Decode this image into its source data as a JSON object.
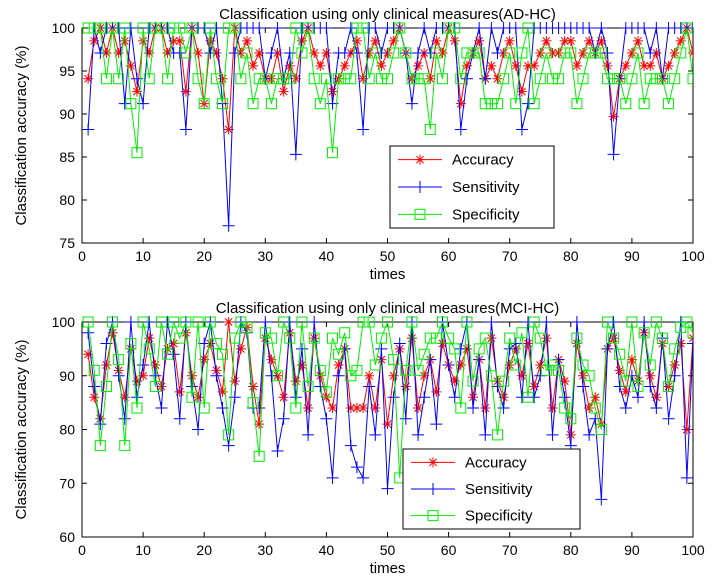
{
  "chart_data": [
    {
      "type": "line",
      "title": "Classification using only clinical measures(AD-HC)",
      "xlabel": "times",
      "ylabel": "Classification accuracy (%)",
      "xlim": [
        0,
        100
      ],
      "ylim": [
        75,
        100
      ],
      "xticks": [
        0,
        10,
        20,
        30,
        40,
        50,
        60,
        70,
        80,
        90,
        100
      ],
      "yticks": [
        75,
        80,
        85,
        90,
        95,
        100
      ],
      "grid": false,
      "legend_position": "lower-right",
      "x": [
        1,
        2,
        3,
        4,
        5,
        6,
        7,
        8,
        9,
        10,
        11,
        12,
        13,
        14,
        15,
        16,
        17,
        18,
        19,
        20,
        21,
        22,
        23,
        24,
        25,
        26,
        27,
        28,
        29,
        30,
        31,
        32,
        33,
        34,
        35,
        36,
        37,
        38,
        39,
        40,
        41,
        42,
        43,
        44,
        45,
        46,
        47,
        48,
        49,
        50,
        51,
        52,
        53,
        54,
        55,
        56,
        57,
        58,
        59,
        60,
        61,
        62,
        63,
        64,
        65,
        66,
        67,
        68,
        69,
        70,
        71,
        72,
        73,
        74,
        75,
        76,
        77,
        78,
        79,
        80,
        81,
        82,
        83,
        84,
        85,
        86,
        87,
        88,
        89,
        90,
        91,
        92,
        93,
        94,
        95,
        96,
        97,
        98,
        99,
        100
      ],
      "series": [
        {
          "name": "Accuracy",
          "color": "#ff0000",
          "marker": "asterisk",
          "values": [
            94.1,
            98.5,
            100,
            97.1,
            100,
            97.1,
            98.5,
            95.6,
            92.6,
            98.5,
            97.1,
            100,
            100,
            97.1,
            98.5,
            98.5,
            92.6,
            100,
            97.1,
            91.2,
            98.5,
            97.1,
            94.1,
            88.2,
            100,
            97.1,
            98.5,
            95.6,
            97.1,
            94.1,
            94.1,
            97.1,
            92.6,
            95.6,
            94.1,
            98.5,
            100,
            97.1,
            95.6,
            97.1,
            92.6,
            94.1,
            95.6,
            97.1,
            98.5,
            94.1,
            97.1,
            98.5,
            95.6,
            97.1,
            98.5,
            100,
            97.1,
            94.1,
            95.6,
            97.1,
            94.1,
            98.5,
            97.1,
            100,
            98.5,
            91.2,
            95.6,
            97.1,
            98.5,
            94.1,
            95.6,
            94.1,
            97.1,
            98.5,
            95.6,
            92.6,
            95.6,
            95.6,
            97.1,
            98.5,
            97.1,
            97.1,
            98.5,
            98.5,
            95.6,
            97.1,
            98.5,
            97.1,
            98.5,
            95.6,
            89.7,
            94.1,
            95.6,
            97.1,
            98.5,
            95.6,
            95.6,
            97.1,
            94.1,
            95.6,
            97.1,
            98.5,
            100,
            97.1
          ]
        },
        {
          "name": "Sensitivity",
          "color": "#0000ff",
          "marker": "plus",
          "values": [
            88.2,
            100,
            97.1,
            100,
            100,
            100,
            91.2,
            100,
            94.1,
            91.2,
            100,
            100,
            100,
            100,
            97.1,
            97.1,
            88.2,
            100,
            100,
            100,
            97.1,
            100,
            91.2,
            77,
            97.1,
            100,
            100,
            100,
            100,
            94.1,
            97.1,
            100,
            94.1,
            97.1,
            85.3,
            100,
            100,
            100,
            100,
            100,
            91.2,
            97.1,
            97.1,
            100,
            97.1,
            88.2,
            100,
            100,
            97.1,
            100,
            100,
            100,
            97.1,
            91.2,
            97.1,
            100,
            97.1,
            100,
            100,
            100,
            100,
            88.2,
            94.1,
            97.1,
            100,
            94.1,
            100,
            97.1,
            100,
            100,
            100,
            88.2,
            91.2,
            100,
            100,
            100,
            100,
            100,
            100,
            100,
            100,
            100,
            100,
            97.1,
            100,
            97.1,
            85.3,
            94.1,
            100,
            100,
            100,
            100,
            97.1,
            100,
            94.1,
            100,
            100,
            100,
            100,
            100
          ]
        },
        {
          "name": "Specificity",
          "color": "#00ee00",
          "marker": "square",
          "values": [
            100,
            100,
            100,
            94.1,
            100,
            94.1,
            100,
            91.2,
            85.5,
            100,
            94.1,
            100,
            100,
            94.1,
            100,
            100,
            97.1,
            100,
            94.1,
            91.2,
            100,
            94.1,
            91.2,
            100,
            100,
            94.1,
            97.1,
            91.2,
            94.1,
            94.1,
            91.2,
            94.1,
            94.1,
            94.1,
            100,
            97.1,
            100,
            94.1,
            91.2,
            94.1,
            85.5,
            94.1,
            94.1,
            94.1,
            100,
            100,
            94.1,
            97.1,
            94.1,
            94.1,
            97.1,
            100,
            97.1,
            94.1,
            94.1,
            94.1,
            88.2,
            97.1,
            94.1,
            100,
            100,
            94.1,
            97.1,
            97.1,
            97.1,
            91.2,
            91.2,
            91.2,
            94.1,
            97.1,
            91.2,
            97.1,
            100,
            91.2,
            94.1,
            97.1,
            94.1,
            94.1,
            97.1,
            97.1,
            91.2,
            94.1,
            97.1,
            97.1,
            97.1,
            94.1,
            94.1,
            94.1,
            91.2,
            94.1,
            97.1,
            91.2,
            94.1,
            94.1,
            94.1,
            91.2,
            94.1,
            97.1,
            100,
            94.1
          ]
        }
      ]
    },
    {
      "type": "line",
      "title": "Classification using only clinical measures(MCI-HC)",
      "xlabel": "times",
      "ylabel": "Classification accuracy (%)",
      "xlim": [
        0,
        100
      ],
      "ylim": [
        60,
        100
      ],
      "xticks": [
        0,
        10,
        20,
        30,
        40,
        50,
        60,
        70,
        80,
        90,
        100
      ],
      "yticks": [
        60,
        70,
        80,
        90,
        100
      ],
      "grid": false,
      "legend_position": "lower-right",
      "x": [
        1,
        2,
        3,
        4,
        5,
        6,
        7,
        8,
        9,
        10,
        11,
        12,
        13,
        14,
        15,
        16,
        17,
        18,
        19,
        20,
        21,
        22,
        23,
        24,
        25,
        26,
        27,
        28,
        29,
        30,
        31,
        32,
        33,
        34,
        35,
        36,
        37,
        38,
        39,
        40,
        41,
        42,
        43,
        44,
        45,
        46,
        47,
        48,
        49,
        50,
        51,
        52,
        53,
        54,
        55,
        56,
        57,
        58,
        59,
        60,
        61,
        62,
        63,
        64,
        65,
        66,
        67,
        68,
        69,
        70,
        71,
        72,
        73,
        74,
        75,
        76,
        77,
        78,
        79,
        80,
        81,
        82,
        83,
        84,
        85,
        86,
        87,
        88,
        89,
        90,
        91,
        92,
        93,
        94,
        95,
        96,
        97,
        98,
        99,
        100
      ],
      "series": [
        {
          "name": "Accuracy",
          "color": "#ff0000",
          "marker": "asterisk",
          "values": [
            94,
            86,
            82,
            92,
            98,
            91,
            86,
            95,
            89,
            90,
            97,
            92,
            88,
            95,
            96,
            87,
            98,
            90,
            86,
            93,
            96,
            91,
            87,
            100,
            89,
            95,
            99,
            88,
            81,
            97,
            93,
            90,
            86,
            98,
            89,
            92,
            84,
            97,
            90,
            86,
            84,
            92,
            95,
            84,
            84,
            84,
            90,
            84,
            93,
            81,
            90,
            95,
            88,
            97,
            84,
            90,
            93,
            87,
            96,
            92,
            89,
            92,
            95,
            86,
            93,
            84,
            97,
            89,
            86,
            92,
            95,
            90,
            96,
            88,
            92,
            97,
            84,
            93,
            89,
            79,
            96,
            90,
            84,
            86,
            81,
            95,
            97,
            91,
            87,
            93,
            89,
            98,
            90,
            86,
            96,
            88,
            92,
            96,
            80,
            97
          ]
        },
        {
          "name": "Sensitivity",
          "color": "#0000ff",
          "marker": "plus",
          "values": [
            98,
            88,
            81,
            96,
            100,
            90,
            82,
            100,
            86,
            92,
            100,
            90,
            84,
            100,
            94,
            82,
            100,
            88,
            80,
            96,
            100,
            90,
            84,
            77,
            86,
            100,
            98,
            84,
            84,
            100,
            90,
            76,
            82,
            100,
            86,
            95,
            79,
            100,
            88,
            82,
            71,
            90,
            95,
            77,
            73,
            71,
            88,
            79,
            95,
            69,
            86,
            96,
            82,
            100,
            79,
            86,
            93,
            81,
            100,
            92,
            86,
            95,
            100,
            84,
            93,
            79,
            100,
            88,
            84,
            95,
            96,
            86,
            100,
            86,
            90,
            100,
            79,
            93,
            86,
            77,
            100,
            88,
            79,
            82,
            67,
            95,
            100,
            88,
            84,
            90,
            86,
            100,
            88,
            84,
            97,
            82,
            90,
            100,
            71,
            96
          ]
        },
        {
          "name": "Specificity",
          "color": "#00ee00",
          "marker": "square",
          "values": [
            100,
            91,
            77,
            88,
            100,
            93,
            77,
            96,
            84,
            100,
            95,
            88,
            100,
            94,
            100,
            97,
            100,
            86,
            100,
            84,
            100,
            96,
            94,
            79,
            97,
            100,
            99,
            85,
            75,
            98,
            97,
            90,
            100,
            97,
            84,
            100,
            88,
            97,
            91,
            87,
            97,
            94,
            98,
            90,
            91,
            100,
            100,
            92,
            97,
            100,
            93,
            71,
            91,
            100,
            91,
            94,
            97,
            97,
            100,
            97,
            95,
            84,
            100,
            89,
            95,
            97,
            90,
            79,
            89,
            97,
            92,
            98,
            86,
            100,
            97,
            91,
            92,
            91,
            84,
            82,
            97,
            92,
            90,
            84,
            80,
            100,
            97,
            94,
            89,
            100,
            88,
            98,
            92,
            100,
            97,
            88,
            95,
            99,
            100,
            98
          ]
        }
      ]
    }
  ]
}
